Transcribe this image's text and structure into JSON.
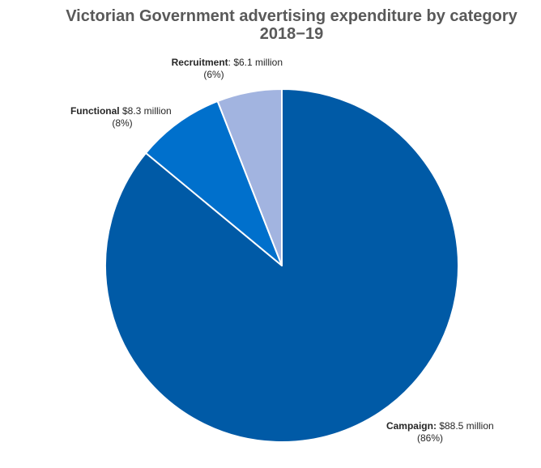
{
  "chart_data": {
    "type": "pie",
    "title": "Victorian Government advertising expenditure by category",
    "subtitle": "2018−19",
    "slices": [
      {
        "name": "Campaign",
        "value": 88.5,
        "value_label": "$88.5 million",
        "percent_label": "(86%)",
        "color": "#005AA6"
      },
      {
        "name": "Functional",
        "value": 8.3,
        "value_label": "$8.3 million",
        "percent_label": "(8%)",
        "color": "#0070CC"
      },
      {
        "name": "Recruitment",
        "value": 6.1,
        "value_label": "$6.1 million",
        "percent_label": "(6%)",
        "color": "#A2B4E0"
      }
    ],
    "start_angle": "12 o'clock",
    "direction": "clockwise",
    "legend": "none",
    "data_labels": "outside"
  }
}
